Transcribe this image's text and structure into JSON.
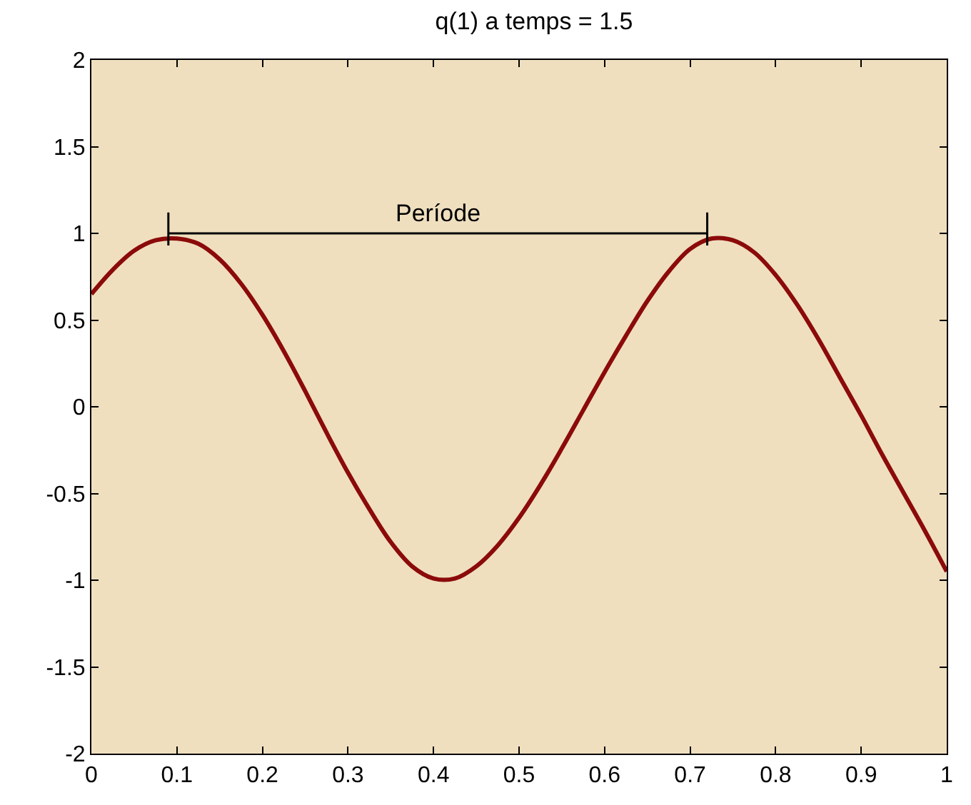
{
  "chart_data": {
    "type": "line",
    "title": "q(1) a temps = 1.5",
    "grid": false,
    "xlim": [
      0,
      1
    ],
    "ylim": [
      -2,
      2
    ],
    "xticks": [
      0,
      0.1,
      0.2,
      0.3,
      0.4,
      0.5,
      0.6,
      0.7,
      0.8,
      0.9,
      1
    ],
    "yticks": [
      -2,
      -1.5,
      -1,
      -0.5,
      0,
      0.5,
      1,
      1.5,
      2
    ],
    "series": [
      {
        "color": "#8b0a0a",
        "x": [
          0,
          0.025,
          0.05,
          0.075,
          0.1,
          0.125,
          0.15,
          0.175,
          0.2,
          0.225,
          0.25,
          0.275,
          0.3,
          0.325,
          0.35,
          0.375,
          0.4,
          0.425,
          0.45,
          0.475,
          0.5,
          0.525,
          0.55,
          0.575,
          0.6,
          0.625,
          0.65,
          0.675,
          0.7,
          0.725,
          0.75,
          0.775,
          0.8,
          0.825,
          0.85,
          0.875,
          0.9,
          0.925,
          0.95,
          0.975,
          1
        ],
        "values": [
          0.65,
          0.79,
          0.9,
          0.96,
          0.97,
          0.94,
          0.85,
          0.71,
          0.53,
          0.32,
          0.09,
          -0.15,
          -0.38,
          -0.59,
          -0.78,
          -0.92,
          -0.99,
          -0.99,
          -0.92,
          -0.8,
          -0.64,
          -0.45,
          -0.24,
          -0.02,
          0.2,
          0.41,
          0.61,
          0.78,
          0.91,
          0.97,
          0.96,
          0.89,
          0.76,
          0.59,
          0.39,
          0.17,
          -0.05,
          -0.28,
          -0.5,
          -0.72,
          -0.95
        ]
      },
      {
        "color": "#000000",
        "x": [
          0.09,
          0.09,
          0.09,
          0.72,
          0.72,
          0.72
        ],
        "values": [
          1.12,
          0.93,
          1,
          1,
          1.12,
          0.93
        ]
      }
    ],
    "annotations": [
      {
        "text": "Període",
        "x": 0.405,
        "y": 1
      }
    ]
  }
}
